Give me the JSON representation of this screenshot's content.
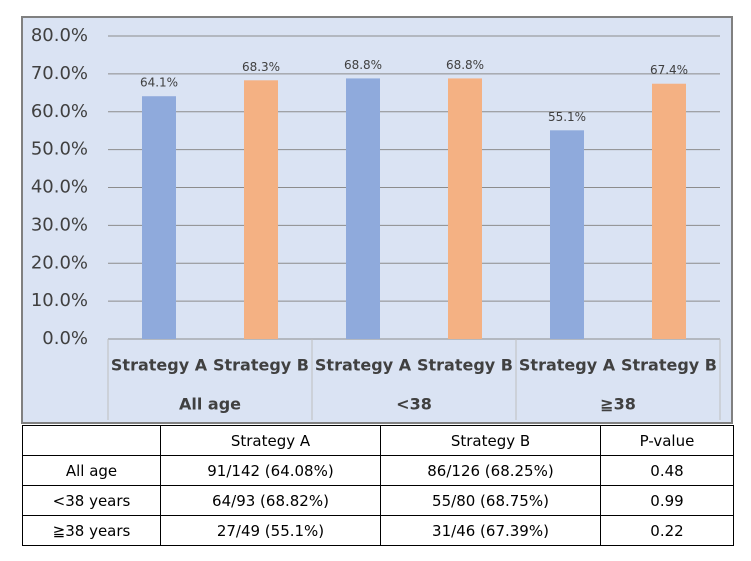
{
  "chart_data": {
    "type": "bar",
    "categories": [
      "Strategy A",
      "Strategy B",
      "Strategy A",
      "Strategy B",
      "Strategy A",
      "Strategy B"
    ],
    "groups": [
      "All age",
      "<38",
      "≧38"
    ],
    "values": [
      64.1,
      68.3,
      68.8,
      68.8,
      55.1,
      67.4
    ],
    "value_labels": [
      "64.1%",
      "68.3%",
      "68.8%",
      "68.8%",
      "55.1%",
      "67.4%"
    ],
    "colors": [
      "#8faadc",
      "#f4b183",
      "#8faadc",
      "#f4b183",
      "#8faadc",
      "#f4b183"
    ],
    "ylim": [
      0,
      80
    ],
    "yticks": [
      {
        "value": 0,
        "label": "0.0%"
      },
      {
        "value": 10,
        "label": "10.0%"
      },
      {
        "value": 20,
        "label": "20.0%"
      },
      {
        "value": 30,
        "label": "30.0%"
      },
      {
        "value": 40,
        "label": "40.0%"
      },
      {
        "value": 50,
        "label": "50.0%"
      },
      {
        "value": 60,
        "label": "60.0%"
      },
      {
        "value": 70,
        "label": "70.0%"
      },
      {
        "value": 80,
        "label": "80.0%"
      }
    ],
    "grid": true
  },
  "table": {
    "header": [
      "Strategy A",
      "Strategy B",
      "P-value"
    ],
    "rows": [
      [
        "All age",
        "91/142 (64.08%)",
        "86/126 (68.25%)",
        "0.48"
      ],
      [
        "<38 years",
        "64/93 (68.82%)",
        "55/80 (68.75%)",
        "0.99"
      ],
      [
        "≧38 years",
        "27/49 (55.1%)",
        "31/46 (67.39%)",
        "0.22"
      ]
    ]
  }
}
